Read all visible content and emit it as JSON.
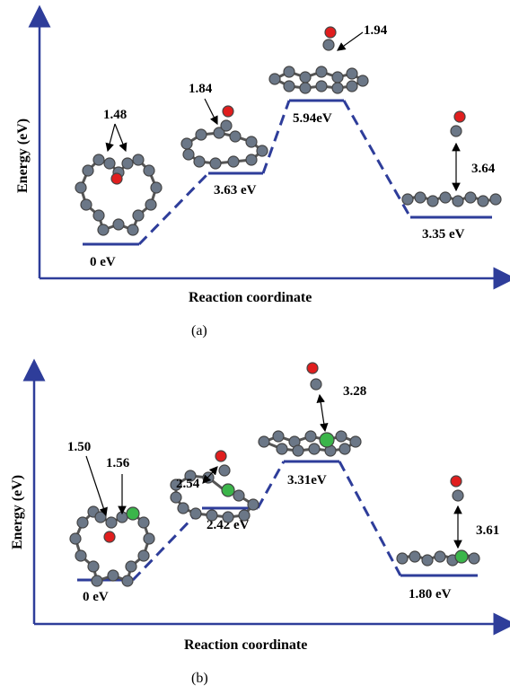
{
  "colors": {
    "axis": "#2e3d9a",
    "level": "#2e3d9a",
    "carbon": "#6b7787",
    "oxygen": "#e01e1e",
    "silicon": "#3bb54a"
  },
  "panel_a": {
    "ylabel": "Energy (eV)",
    "xlabel": "Reaction coordinate",
    "caption": "(a)",
    "levels": [
      "0 eV",
      "3.63 eV",
      "5.94eV",
      "3.35 eV"
    ],
    "bonds": [
      "1.48",
      "1.84",
      "1.94",
      "3.64"
    ]
  },
  "panel_b": {
    "ylabel": "Energy (eV)",
    "xlabel": "Reaction coordinate",
    "caption": "(b)",
    "levels": [
      "0 eV",
      "2.42 eV",
      "3.31eV",
      "1.80 eV"
    ],
    "bonds": [
      "1.50",
      "1.56",
      "2.54",
      "3.28",
      "3.61"
    ]
  }
}
